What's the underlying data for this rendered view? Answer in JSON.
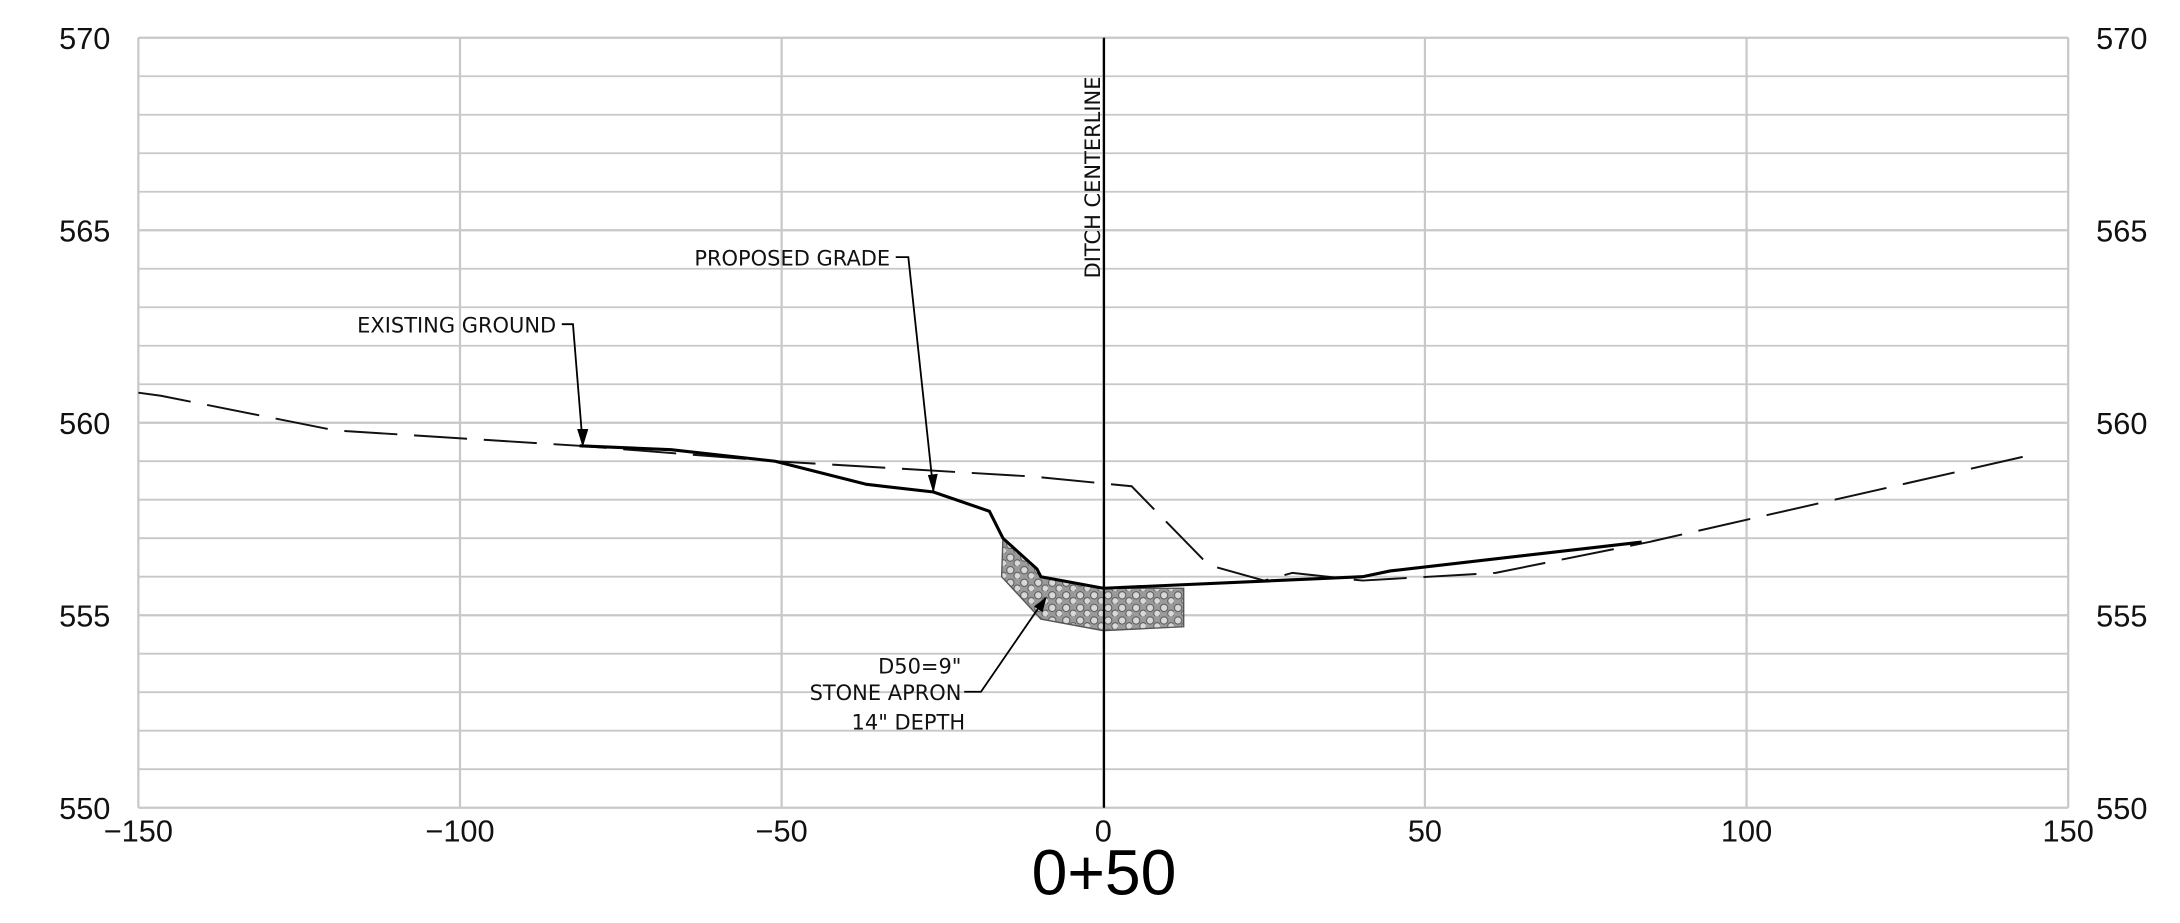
{
  "chart_data": {
    "type": "line",
    "title": "0+50",
    "xlim": [
      -150,
      150
    ],
    "ylim": [
      550,
      570
    ],
    "xticks": [
      {
        "value": -150,
        "label": "−150"
      },
      {
        "value": -100,
        "label": "−100"
      },
      {
        "value": -50,
        "label": "−50"
      },
      0,
      50,
      100,
      150
    ],
    "yticks": [
      550,
      555,
      560,
      565,
      570
    ],
    "minor_yticks": [
      551,
      552,
      553,
      554,
      556,
      557,
      558,
      559,
      561,
      562,
      563,
      564,
      566,
      567,
      568,
      569
    ],
    "grid": true,
    "series": [
      {
        "name": "EXISTING GROUND",
        "color": "#111111",
        "dash": true,
        "x": [
          -150,
          -146.5,
          -119.4,
          -81.4,
          -51,
          -10.8,
          4.4,
          16.4,
          25,
          29.4,
          40.3,
          61,
          84.8,
          143.9
        ],
        "values": [
          560.78,
          560.7,
          559.8,
          559.4,
          559.0,
          558.6,
          558.35,
          556.3,
          555.9,
          556.1,
          555.9,
          556.1,
          556.9,
          559.15
        ]
      },
      {
        "name": "PROPOSED GRADE",
        "color": "#000000",
        "dash": false,
        "x": [
          -81.4,
          -67.2,
          -51,
          -36.8,
          -26.4,
          -17.7,
          -15.6,
          -10.3,
          -9.7,
          0,
          40.3,
          44.6,
          83.7
        ],
        "values": [
          559.4,
          559.3,
          559.0,
          558.4,
          558.2,
          557.7,
          557.0,
          556.2,
          556.0,
          555.7,
          556.0,
          556.15,
          556.9
        ]
      }
    ],
    "apron": {
      "x": [
        -15.6,
        -15.8,
        -9.7,
        0,
        12.5,
        12.5,
        0,
        -9.7,
        -10.3
      ],
      "values": [
        557.0,
        556.0,
        554.9,
        554.6,
        554.7,
        555.7,
        555.7,
        556.0,
        556.2
      ]
    },
    "annotations": {
      "centerline": "DITCH CENTERLINE",
      "apron_size": "D50=9\"",
      "apron_name": "STONE APRON",
      "apron_depth": "14\" DEPTH"
    }
  }
}
